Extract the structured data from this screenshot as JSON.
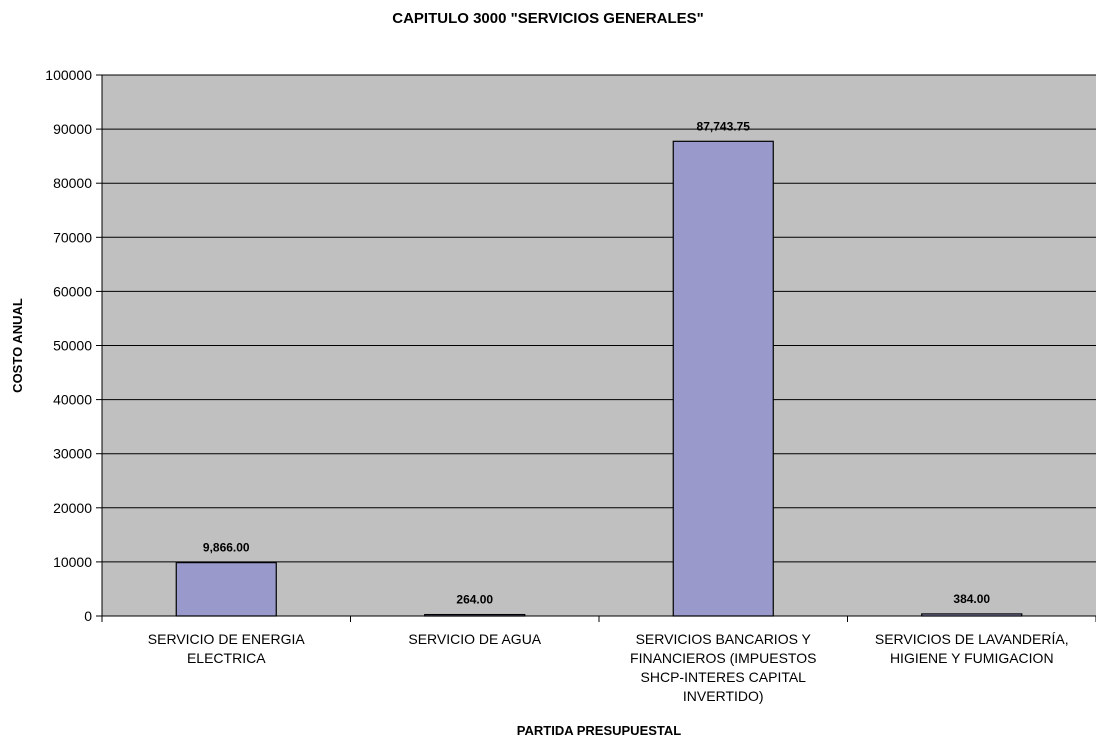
{
  "chart_data": {
    "type": "bar",
    "title": "CAPITULO 3000 \"SERVICIOS GENERALES\"",
    "xlabel": "PARTIDA PRESUPUESTAL",
    "ylabel": "COSTO ANUAL",
    "ylim": [
      0,
      100000
    ],
    "yticks": [
      0,
      10000,
      20000,
      30000,
      40000,
      50000,
      60000,
      70000,
      80000,
      90000,
      100000
    ],
    "grid": true,
    "legend": "none",
    "categories": [
      [
        "SERVICIO DE ENERGIA",
        "ELECTRICA"
      ],
      [
        "SERVICIO DE AGUA"
      ],
      [
        "SERVICIOS BANCARIOS Y",
        "FINANCIEROS (IMPUESTOS",
        "SHCP-INTERES  CAPITAL",
        "INVERTIDO)"
      ],
      [
        "SERVICIOS DE LAVANDERÍA,",
        "HIGIENE Y FUMIGACION"
      ]
    ],
    "values": [
      9866.0,
      264.0,
      87743.75,
      384.0
    ],
    "value_labels": [
      "9,866.00",
      "264.00",
      "87,743.75",
      "384.00"
    ],
    "colors": {
      "bar": "#9999cc",
      "plot_background": "#c0c0c0",
      "grid": "#000000"
    }
  }
}
